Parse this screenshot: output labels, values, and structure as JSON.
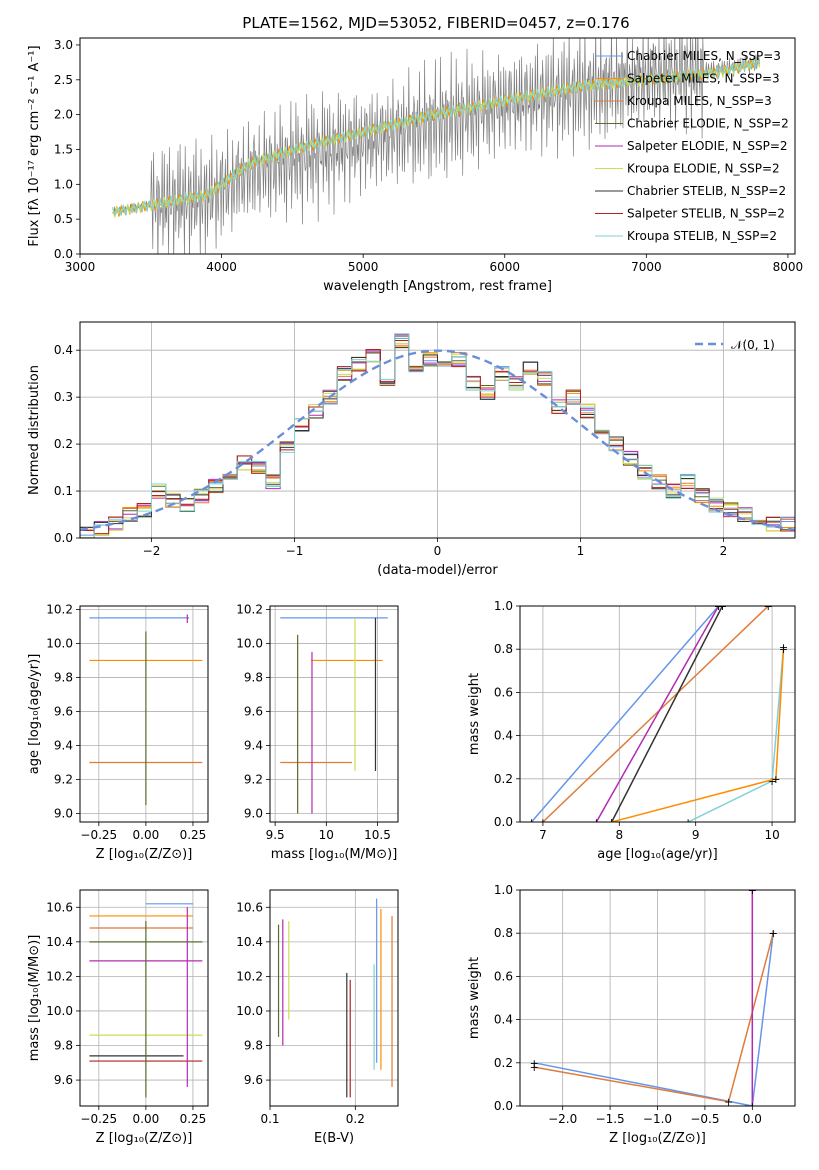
{
  "figure": {
    "title": "PLATE=1562, MJD=53052, FIBERID=0457, z=0.176"
  },
  "series_colors": [
    "#6495ED",
    "#FF8C00",
    "#E07B39",
    "#556B2F",
    "#B22BB2",
    "#C8E04F",
    "#333333",
    "#B22222",
    "#7FD1D6"
  ],
  "chart_data": [
    {
      "id": "spectrum",
      "type": "line",
      "title": "PLATE=1562, MJD=53052, FIBERID=0457, z=0.176",
      "xlabel": "wavelength [Angstrom, rest frame]",
      "ylabel": "Flux [fλ 10⁻¹⁷ erg cm⁻² s⁻¹ A⁻¹]",
      "xlim": [
        3000,
        8050
      ],
      "ylim": [
        0,
        3.1
      ],
      "xticks": [
        3000,
        4000,
        5000,
        6000,
        7000,
        8000
      ],
      "yticks": [
        0.0,
        0.5,
        1.0,
        1.5,
        2.0,
        2.5,
        3.0
      ],
      "grid": false,
      "legend_position": "top-right",
      "legend": [
        "Chabrier MILES, N_SSP=3",
        "Salpeter MILES, N_SSP=3",
        "Kroupa MILES, N_SSP=3",
        "Chabrier ELODIE, N_SSP=2",
        "Salpeter ELODIE, N_SSP=2",
        "Kroupa ELODIE, N_SSP=2",
        "Chabrier STELIB, N_SSP=2",
        "Salpeter STELIB, N_SSP=2",
        "Kroupa STELIB, N_SSP=2"
      ],
      "data_x": [
        3230,
        3500,
        3900,
        4200,
        4600,
        5000,
        5500,
        6000,
        6500,
        7000,
        7500,
        7800
      ],
      "data_y": [
        0.6,
        0.7,
        0.8,
        1.2,
        1.4,
        1.6,
        1.9,
        2.15,
        2.35,
        2.55,
        2.65,
        2.75
      ],
      "model_y": [
        0.6,
        0.7,
        0.85,
        1.3,
        1.55,
        1.75,
        2.0,
        2.2,
        2.4,
        2.5,
        2.6,
        2.75
      ]
    },
    {
      "id": "residuals",
      "type": "line",
      "xlabel": "(data-model)/error",
      "ylabel": "Normed distribution",
      "xlim": [
        -2.5,
        2.5
      ],
      "ylim": [
        0,
        0.46
      ],
      "xticks": [
        -2,
        -1,
        0,
        1,
        2
      ],
      "yticks": [
        0.0,
        0.1,
        0.2,
        0.3,
        0.4
      ],
      "grid": true,
      "legend_position": "top-right",
      "legend": [
        "𝒩(0, 1)"
      ],
      "hist_bins": [
        -2.5,
        -2.4,
        -2.3,
        -2.2,
        -2.1,
        -2.0,
        -1.9,
        -1.8,
        -1.7,
        -1.6,
        -1.5,
        -1.4,
        -1.3,
        -1.2,
        -1.1,
        -1.0,
        -0.9,
        -0.8,
        -0.7,
        -0.6,
        -0.5,
        -0.4,
        -0.3,
        -0.2,
        -0.1,
        0.0,
        0.1,
        0.2,
        0.3,
        0.4,
        0.5,
        0.6,
        0.7,
        0.8,
        0.9,
        1.0,
        1.1,
        1.2,
        1.3,
        1.4,
        1.5,
        1.6,
        1.7,
        1.8,
        1.9,
        2.0,
        2.1,
        2.2,
        2.3,
        2.4,
        2.5
      ],
      "hist_values": [
        0.01,
        0.02,
        0.03,
        0.05,
        0.06,
        0.1,
        0.08,
        0.07,
        0.09,
        0.11,
        0.14,
        0.16,
        0.15,
        0.12,
        0.19,
        0.24,
        0.27,
        0.3,
        0.35,
        0.37,
        0.39,
        0.34,
        0.42,
        0.36,
        0.38,
        0.36,
        0.38,
        0.33,
        0.31,
        0.35,
        0.33,
        0.36,
        0.34,
        0.28,
        0.3,
        0.27,
        0.22,
        0.2,
        0.17,
        0.14,
        0.12,
        0.1,
        0.12,
        0.09,
        0.07,
        0.06,
        0.05,
        0.04,
        0.03,
        0.03
      ]
    },
    {
      "id": "z-age",
      "type": "scatter",
      "xlabel": "Z [log₁₀(Z/Z⊙)]",
      "ylabel": "age  [log₁₀(age/yr)]",
      "xlim": [
        -0.35,
        0.33
      ],
      "ylim": [
        8.95,
        10.22
      ],
      "xticks": [
        -0.25,
        0.0,
        0.25
      ],
      "xticklabels": [
        "−0.25",
        "0.00",
        "0.25"
      ],
      "yticks": [
        9.0,
        9.2,
        9.4,
        9.6,
        9.8,
        10.0,
        10.2
      ],
      "grid": true,
      "hlines": [
        {
          "y": 10.15,
          "x1": -0.3,
          "x2": 0.23
        },
        {
          "y": 9.9,
          "x1": -0.3,
          "x2": 0.3
        },
        {
          "y": 9.3,
          "x1": -0.3,
          "x2": 0.3
        }
      ],
      "vlines": [
        {
          "x": 0.0,
          "y1": 9.05,
          "y2": 10.07
        },
        {
          "x": 0.22,
          "y1": 10.12,
          "y2": 10.17
        }
      ]
    },
    {
      "id": "mass-age",
      "type": "scatter",
      "xlabel": "mass [log₁₀(M/M⊙)]",
      "ylabel": "",
      "xlim": [
        9.45,
        10.7
      ],
      "ylim": [
        8.95,
        10.22
      ],
      "xticks": [
        9.5,
        10.0,
        10.5
      ],
      "yticks": [
        9.0,
        9.2,
        9.4,
        9.6,
        9.8,
        10.0,
        10.2
      ],
      "grid": true,
      "hlines": [
        {
          "y": 10.15,
          "x1": 9.55,
          "x2": 10.6
        },
        {
          "y": 9.9,
          "x1": 9.85,
          "x2": 10.55
        },
        {
          "y": 9.3,
          "x1": 9.55,
          "x2": 10.25
        }
      ],
      "vlines": [
        {
          "x": 9.72,
          "y1": 9.0,
          "y2": 10.05
        },
        {
          "x": 9.86,
          "y1": 9.0,
          "y2": 9.95
        },
        {
          "x": 10.28,
          "y1": 9.25,
          "y2": 10.15
        },
        {
          "x": 10.48,
          "y1": 9.25,
          "y2": 10.15
        }
      ]
    },
    {
      "id": "age-weight",
      "type": "line",
      "xlabel": "age  [log₁₀(age/yr)]",
      "ylabel": "mass weight",
      "xlim": [
        6.7,
        10.3
      ],
      "ylim": [
        0.0,
        1.0
      ],
      "xticks": [
        7,
        8,
        9,
        10
      ],
      "yticks": [
        0.0,
        0.2,
        0.4,
        0.6,
        0.8,
        1.0
      ],
      "grid": true,
      "series": [
        {
          "x": [
            6.85,
            9.3
          ],
          "y": [
            0.0,
            1.0
          ]
        },
        {
          "x": [
            7.0,
            9.95
          ],
          "y": [
            0.0,
            1.0
          ]
        },
        {
          "x": [
            7.7,
            9.3
          ],
          "y": [
            0.0,
            1.0
          ]
        },
        {
          "x": [
            7.9,
            9.35
          ],
          "y": [
            0.0,
            1.0
          ]
        },
        {
          "x": [
            8.9,
            10.0,
            10.15
          ],
          "y": [
            0.0,
            0.19,
            0.81
          ]
        },
        {
          "x": [
            7.9,
            10.05,
            10.15
          ],
          "y": [
            0.0,
            0.2,
            0.8
          ]
        }
      ]
    },
    {
      "id": "z-mass",
      "type": "scatter",
      "xlabel": "Z [log₁₀(Z/Z⊙)]",
      "ylabel": "mass [log₁₀(M/M⊙)]",
      "xlim": [
        -0.35,
        0.33
      ],
      "ylim": [
        9.45,
        10.7
      ],
      "xticks": [
        -0.25,
        0.0,
        0.25
      ],
      "xticklabels": [
        "−0.25",
        "0.00",
        "0.25"
      ],
      "yticks": [
        9.6,
        9.8,
        10.0,
        10.2,
        10.4,
        10.6
      ],
      "grid": true,
      "hlines": [
        {
          "y": 10.62,
          "x1": 0.0,
          "x2": 0.25
        },
        {
          "y": 10.55,
          "x1": -0.3,
          "x2": 0.25
        },
        {
          "y": 10.48,
          "x1": -0.3,
          "x2": 0.25
        },
        {
          "y": 10.4,
          "x1": -0.3,
          "x2": 0.3
        },
        {
          "y": 10.29,
          "x1": -0.3,
          "x2": 0.3
        },
        {
          "y": 9.86,
          "x1": -0.3,
          "x2": 0.3
        },
        {
          "y": 9.74,
          "x1": -0.3,
          "x2": 0.2
        },
        {
          "y": 9.71,
          "x1": -0.3,
          "x2": 0.3
        }
      ],
      "vlines": [
        {
          "x": 0.0,
          "y1": 9.5,
          "y2": 10.52
        },
        {
          "x": 0.22,
          "y1": 9.56,
          "y2": 10.6
        }
      ]
    },
    {
      "id": "ebv-mass",
      "type": "scatter",
      "xlabel": "E(B-V)",
      "ylabel": "",
      "xlim": [
        0.1,
        0.25
      ],
      "ylim": [
        9.45,
        10.7
      ],
      "xticks": [
        0.1,
        0.2
      ],
      "xticklabels": [
        "0.1",
        "0.2"
      ],
      "yticks": [
        9.6,
        9.8,
        10.0,
        10.2,
        10.4,
        10.6
      ],
      "grid": true,
      "vlines": [
        {
          "x": 0.11,
          "y1": 9.85,
          "y2": 10.5
        },
        {
          "x": 0.115,
          "y1": 9.8,
          "y2": 10.53
        },
        {
          "x": 0.122,
          "y1": 9.95,
          "y2": 10.52
        },
        {
          "x": 0.19,
          "y1": 9.5,
          "y2": 10.22
        },
        {
          "x": 0.194,
          "y1": 9.5,
          "y2": 10.18
        },
        {
          "x": 0.222,
          "y1": 9.66,
          "y2": 10.27
        },
        {
          "x": 0.225,
          "y1": 9.7,
          "y2": 10.65
        },
        {
          "x": 0.23,
          "y1": 9.66,
          "y2": 10.59
        },
        {
          "x": 0.243,
          "y1": 9.56,
          "y2": 10.55
        }
      ]
    },
    {
      "id": "z-weight",
      "type": "line",
      "xlabel": "Z [log₁₀(Z/Z⊙)]",
      "ylabel": "mass weight",
      "xlim": [
        -2.45,
        0.45
      ],
      "ylim": [
        0.0,
        1.0
      ],
      "xticks": [
        -2.0,
        -1.5,
        -1.0,
        -0.5,
        0.0
      ],
      "xticklabels": [
        "−2.0",
        "−1.5",
        "−1.0",
        "−0.5",
        "0.0"
      ],
      "yticks": [
        0.0,
        0.2,
        0.4,
        0.6,
        0.8,
        1.0
      ],
      "grid": true,
      "series": [
        {
          "x": [
            -2.3,
            0.0,
            0.22
          ],
          "y": [
            0.2,
            0.0,
            0.8
          ]
        },
        {
          "x": [
            -2.3,
            -0.25,
            0.22
          ],
          "y": [
            0.18,
            0.02,
            0.8
          ]
        },
        {
          "x": [
            0.0,
            0.0
          ],
          "y": [
            0.0,
            1.0
          ]
        }
      ]
    }
  ]
}
